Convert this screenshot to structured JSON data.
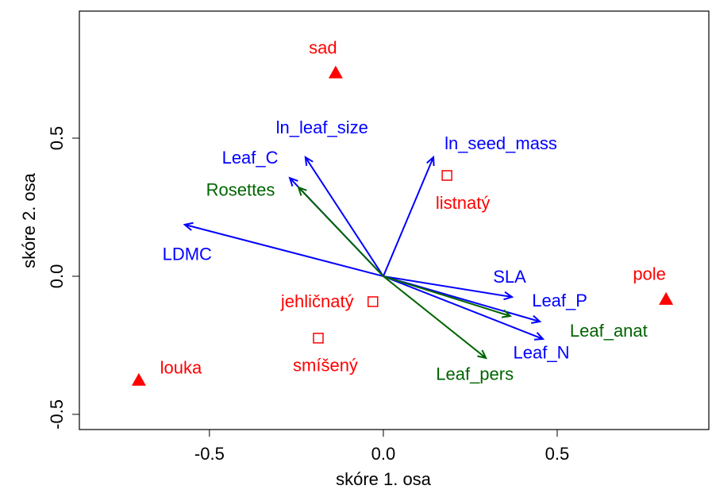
{
  "chart_data": {
    "type": "biplot",
    "xlabel": "skóre 1. osa",
    "ylabel": "skóre 2. osa",
    "xlim": [
      -0.874,
      0.936
    ],
    "ylim": [
      -0.555,
      0.96
    ],
    "xticks": [
      -0.5,
      {
        "value": 0,
        "label": "0.0"
      },
      0.5
    ],
    "yticks": [
      -0.5,
      {
        "value": 0,
        "label": "0.0"
      },
      0.5
    ],
    "points": [
      {
        "marker": "triangle",
        "color": "#ff0000",
        "labels": [
          "sad",
          "pole",
          "louka"
        ],
        "x": [
          -0.137,
          0.813,
          -0.703
        ],
        "y": [
          0.737,
          -0.083,
          -0.376
        ]
      },
      {
        "marker": "square",
        "color": "#ff0000",
        "labels": [
          "listnatý",
          "jehličnatý",
          "smíšený"
        ],
        "x": [
          0.183,
          -0.03,
          -0.187
        ],
        "y": [
          0.365,
          -0.092,
          -0.224
        ]
      }
    ],
    "arrows": [
      {
        "color": "#0000ff",
        "labels": [
          "ln_leaf_size",
          "Leaf_C",
          "LDMC",
          "ln_seed_mass",
          "SLA",
          "Leaf_P",
          "Leaf_N"
        ],
        "x": [
          -0.224,
          -0.269,
          -0.571,
          0.144,
          0.37,
          0.45,
          0.459
        ],
        "y": [
          0.431,
          0.356,
          0.187,
          0.431,
          -0.075,
          -0.164,
          -0.227
        ]
      },
      {
        "color": "#006400",
        "labels": [
          "Rosettes",
          "Leaf_anat",
          "Leaf_pers"
        ],
        "x": [
          -0.244,
          0.365,
          0.295
        ],
        "y": [
          0.322,
          -0.144,
          -0.296
        ]
      }
    ]
  }
}
